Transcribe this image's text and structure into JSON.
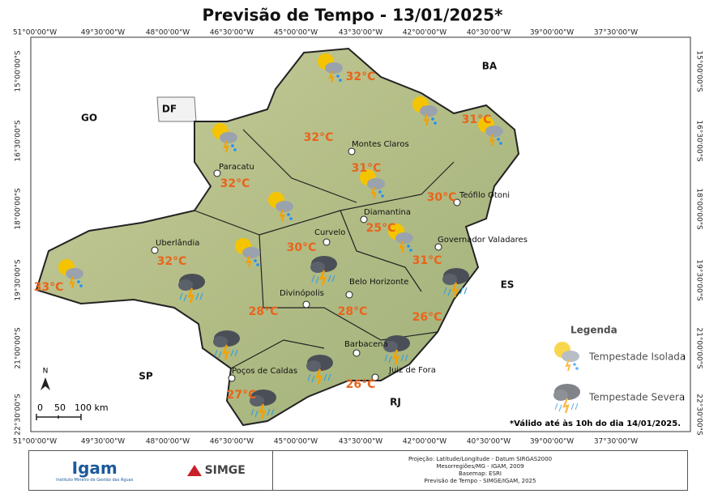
{
  "header": {
    "title": "Previsão de Tempo - 13/01/2025*"
  },
  "coordinates": {
    "longitudes": [
      "51°00'00\"W",
      "49°30'00\"W",
      "48°00'00\"W",
      "46°30'00\"W",
      "45°00'00\"W",
      "43°30'00\"W",
      "42°00'00\"W",
      "40°30'00\"W",
      "39°00'00\"W",
      "37°30'00\"W"
    ],
    "latitudes": [
      "15°00'00\"S",
      "16°30'00\"S",
      "18°00'00\"S",
      "19°30'00\"S",
      "21°00'00\"S",
      "22°30'00\"S"
    ]
  },
  "states": [
    "GO",
    "DF",
    "BA",
    "ES",
    "SP",
    "RJ"
  ],
  "cities": [
    "Paracatu",
    "Montes Claros",
    "Diamantina",
    "Teófilo Otoni",
    "Uberlândia",
    "Curvelo",
    "Governador Valadares",
    "Divinópolis",
    "Belo Horizonte",
    "Barbacena",
    "Poços de Caldas",
    "Juiz de Fora"
  ],
  "temperatures": [
    "32°C",
    "31°C",
    "32°C",
    "31°C",
    "32°C",
    "30°C",
    "25°C",
    "30°C",
    "32°C",
    "31°C",
    "33°C",
    "28°C",
    "28°C",
    "26°C",
    "26°C",
    "27°C"
  ],
  "legend": {
    "title": "Legenda",
    "items": [
      "Tempestade Isolada",
      "Tempestade Severa"
    ]
  },
  "scale": [
    "0",
    "50",
    "100 km"
  ],
  "north": "N",
  "note": "*Válido até às 10h do dia 14/01/2025.",
  "footer": {
    "logo": "Igam",
    "institute": "Instituto Mineiro de Gestão das Águas",
    "logo2": "SIMGE",
    "meta": [
      "Projeção: Latitude/Longitude - Datum SIRGAS2000",
      "Mesorregiões/MG - IGAM, 2009",
      "Basemap: ESRI",
      "Previsão de Tempo - SIMGE/IGAM, 2025"
    ]
  }
}
